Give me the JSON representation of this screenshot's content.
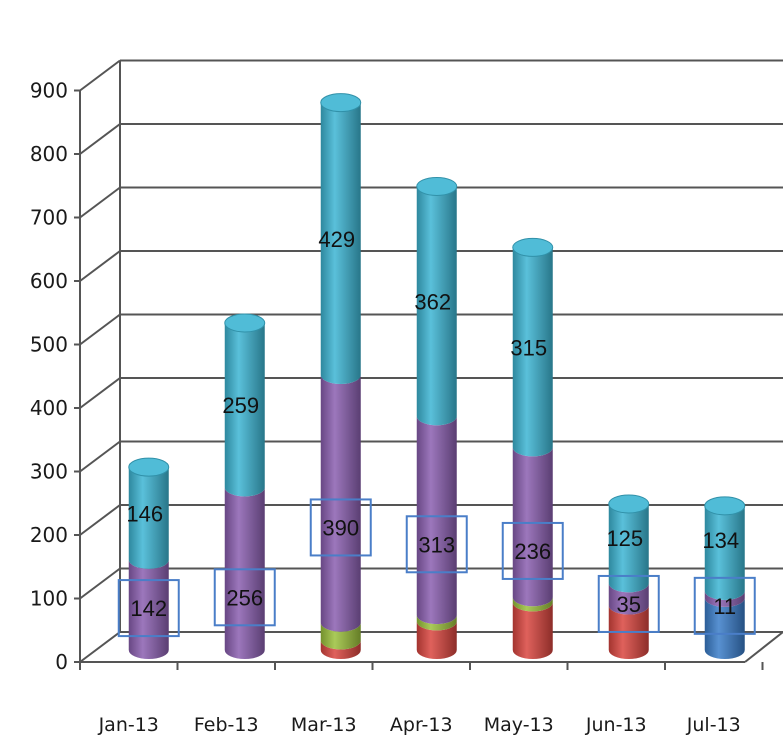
{
  "chart_data": {
    "type": "bar",
    "stacked": true,
    "style": "3d-cylinder",
    "categories": [
      "Jan-13",
      "Feb-13",
      "Mar-13",
      "Apr-13",
      "May-13",
      "Jun-13",
      "Jul-13"
    ],
    "series": [
      {
        "values": [
          0,
          0,
          0,
          0,
          0,
          0,
          82
        ],
        "color": "#3a7dc9"
      },
      {
        "values": [
          0,
          0,
          15,
          45,
          75,
          70,
          0
        ],
        "color": "#d9453f"
      },
      {
        "values": [
          0,
          0,
          28,
          10,
          8,
          0,
          0
        ],
        "color": "#9bc13c"
      },
      {
        "values": [
          142,
          256,
          390,
          313,
          236,
          35,
          11
        ],
        "color": "#8a5fb0"
      },
      {
        "values": [
          146,
          259,
          429,
          362,
          315,
          125,
          134
        ],
        "color": "#3db5d3"
      }
    ],
    "data_labels": [
      {
        "category": "Jan-13",
        "upper": "146",
        "lower": "142"
      },
      {
        "category": "Feb-13",
        "upper": "259",
        "lower": "256"
      },
      {
        "category": "Mar-13",
        "upper": "429",
        "lower": "390"
      },
      {
        "category": "Apr-13",
        "upper": "362",
        "lower": "313"
      },
      {
        "category": "May-13",
        "upper": "315",
        "lower": "236"
      },
      {
        "category": "Jun-13",
        "upper": "125",
        "lower": "35"
      },
      {
        "category": "Jul-13",
        "upper": "134",
        "lower": "11"
      }
    ],
    "yticks": [
      "0",
      "100",
      "200",
      "300",
      "400",
      "500",
      "600",
      "700",
      "800",
      "900"
    ],
    "ylim": [
      0,
      900
    ],
    "grid": true,
    "legend": "none",
    "title": "",
    "xlabel": "",
    "ylabel": ""
  }
}
